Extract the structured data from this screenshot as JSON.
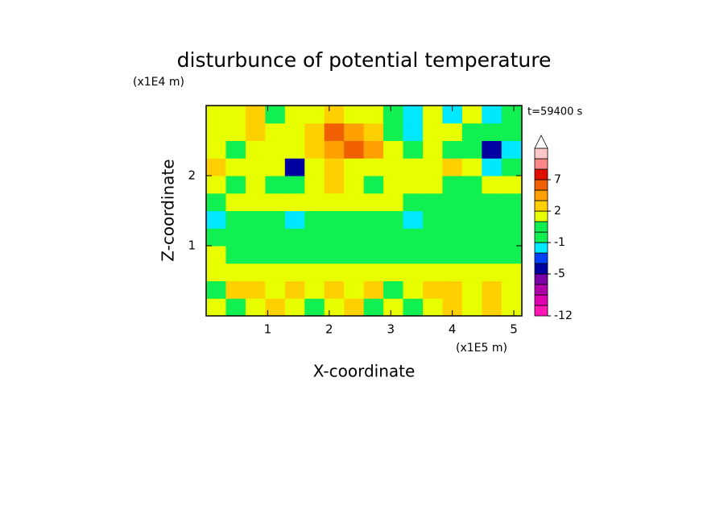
{
  "chart_data": {
    "type": "contour",
    "title": "disturbunce of potential temperature",
    "annotation": "t=59400 s",
    "x_label": "X-coordinate",
    "y_label": "Z-coordinate",
    "x_unit": "(x1E5 m)",
    "y_unit": "(x1E4 m)",
    "xlim": [
      0,
      5.13
    ],
    "ylim": [
      0,
      3
    ],
    "xticks": [
      1,
      2,
      3,
      4,
      5
    ],
    "yticks": [
      1,
      2
    ],
    "x": [
      0.16,
      0.48,
      0.8,
      1.12,
      1.44,
      1.76,
      2.08,
      2.4,
      2.72,
      3.04,
      3.36,
      3.68,
      4.0,
      4.32,
      4.64,
      4.96
    ],
    "z": [
      0.125,
      0.375,
      0.625,
      0.875,
      1.125,
      1.375,
      1.625,
      1.875,
      2.125,
      2.375,
      2.625,
      2.875
    ],
    "values": [
      [
        1.5,
        0.5,
        1.5,
        2.5,
        1.5,
        0.5,
        1.5,
        2.5,
        0.5,
        1.5,
        0.5,
        1.5,
        2.5,
        1.5,
        2.5,
        1.5
      ],
      [
        0.5,
        2.5,
        2.5,
        1.5,
        2.5,
        1.5,
        2.5,
        1.5,
        2.5,
        0.5,
        1.5,
        2.5,
        2.5,
        1.5,
        2.5,
        1.5
      ],
      [
        1.5,
        1.5,
        1.5,
        1.5,
        1.5,
        1.5,
        1.5,
        1.5,
        1.5,
        1.5,
        1.5,
        1.5,
        1.5,
        1.5,
        1.5,
        1.5
      ],
      [
        1.5,
        0.5,
        0.5,
        0.5,
        0.5,
        0.5,
        0.5,
        0.5,
        0.5,
        0.5,
        0.5,
        0.5,
        0.5,
        0.5,
        0.5,
        0.5
      ],
      [
        0.5,
        0.5,
        0.5,
        0.5,
        0.5,
        0.5,
        0.5,
        0.5,
        0.5,
        0.5,
        0.5,
        0.5,
        0.5,
        0.5,
        0.5,
        0.5
      ],
      [
        -1.5,
        -0.5,
        0.5,
        0.5,
        -1.5,
        -0.5,
        0.5,
        0.5,
        0.5,
        -0.5,
        -1.5,
        0.5,
        0.5,
        0.5,
        0.5,
        0.5
      ],
      [
        0.5,
        1.5,
        1.5,
        1.5,
        1.5,
        1.5,
        1.5,
        1.5,
        1.5,
        1.5,
        0.5,
        0.5,
        0.5,
        0.5,
        0.5,
        0.5
      ],
      [
        1.5,
        0.5,
        1.5,
        0.5,
        -0.5,
        1.5,
        2.5,
        1.5,
        0.5,
        1.5,
        1.5,
        1.5,
        0.5,
        0.5,
        1.5,
        1.5
      ],
      [
        2.5,
        1.5,
        1.5,
        1.5,
        -4,
        1.5,
        2.5,
        1.5,
        1.5,
        1.5,
        1.5,
        1.5,
        2.5,
        1.5,
        -1.5,
        0.5
      ],
      [
        1.5,
        0.5,
        1.5,
        1.5,
        1.5,
        2.5,
        4,
        6,
        4,
        1.5,
        -0.5,
        1.5,
        0.5,
        -0.5,
        -4,
        -1.5
      ],
      [
        1.5,
        1.5,
        2.5,
        1.5,
        1.5,
        2.5,
        6,
        4,
        2.5,
        0.5,
        -1.5,
        1.5,
        1.5,
        0.5,
        0.5,
        0.5
      ],
      [
        1.5,
        1.5,
        2.5,
        0.5,
        1.5,
        1.5,
        2.5,
        1.5,
        1.5,
        0.5,
        -1.5,
        1.5,
        -1.5,
        1.5,
        -1.5,
        0.5
      ]
    ],
    "levels": [
      -12,
      -10,
      -8,
      -6,
      -5,
      -3,
      -2,
      -1,
      0,
      1,
      2,
      3,
      5,
      7,
      9,
      11,
      13
    ],
    "colors": [
      "#ff14b4",
      "#e000b0",
      "#b000a8",
      "#7a00a8",
      "#0000a0",
      "#0040ff",
      "#00e8ff",
      "#10f050",
      "#10f050",
      "#e8ff00",
      "#ffd000",
      "#ffa000",
      "#f06000",
      "#e01000",
      "#ff8888",
      "#ffc8c8"
    ],
    "level_ticks": [
      -12,
      -5,
      -1,
      2,
      7
    ]
  }
}
